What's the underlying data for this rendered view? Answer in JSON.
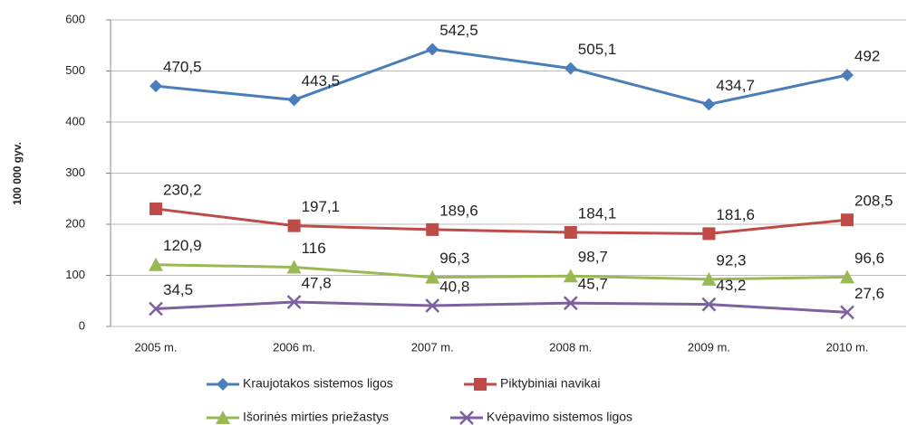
{
  "chart_data": {
    "type": "line",
    "y_label": "100 000 gyv.",
    "categories": [
      "2005 m.",
      "2006 m.",
      "2007 m.",
      "2008 m.",
      "2009 m.",
      "2010 m."
    ],
    "series": [
      {
        "name": "Kraujotakos sistemos ligos",
        "color": "#4a7ebb",
        "marker": "diamond",
        "values": [
          470.5,
          443.5,
          542.5,
          505.1,
          434.7,
          492
        ],
        "value_labels": [
          "470,5",
          "443,5",
          "542,5",
          "505,1",
          "434,7",
          "492"
        ]
      },
      {
        "name": "Piktybiniai navikai",
        "color": "#be4b48",
        "marker": "square",
        "values": [
          230.2,
          197.1,
          189.6,
          184.1,
          181.6,
          208.5
        ],
        "value_labels": [
          "230,2",
          "197,1",
          "189,6",
          "184,1",
          "181,6",
          "208,5"
        ]
      },
      {
        "name": "Išorinės mirties priežastys",
        "color": "#98b954",
        "marker": "triangle",
        "values": [
          120.9,
          116,
          96.3,
          98.7,
          92.3,
          96.6
        ],
        "value_labels": [
          "120,9",
          "116",
          "96,3",
          "98,7",
          "92,3",
          "96,6"
        ]
      },
      {
        "name": "Kvėpavimo sistemos ligos",
        "color": "#7d60a0",
        "marker": "x",
        "values": [
          34.5,
          47.8,
          40.8,
          45.7,
          43.2,
          27.6
        ],
        "value_labels": [
          "34,5",
          "47,8",
          "40,8",
          "45,7",
          "43,2",
          "27,6"
        ]
      }
    ],
    "ylim": [
      0,
      600
    ],
    "yticks": [
      0,
      100,
      200,
      300,
      400,
      500,
      600
    ],
    "grid": true,
    "legend": "bottom"
  }
}
